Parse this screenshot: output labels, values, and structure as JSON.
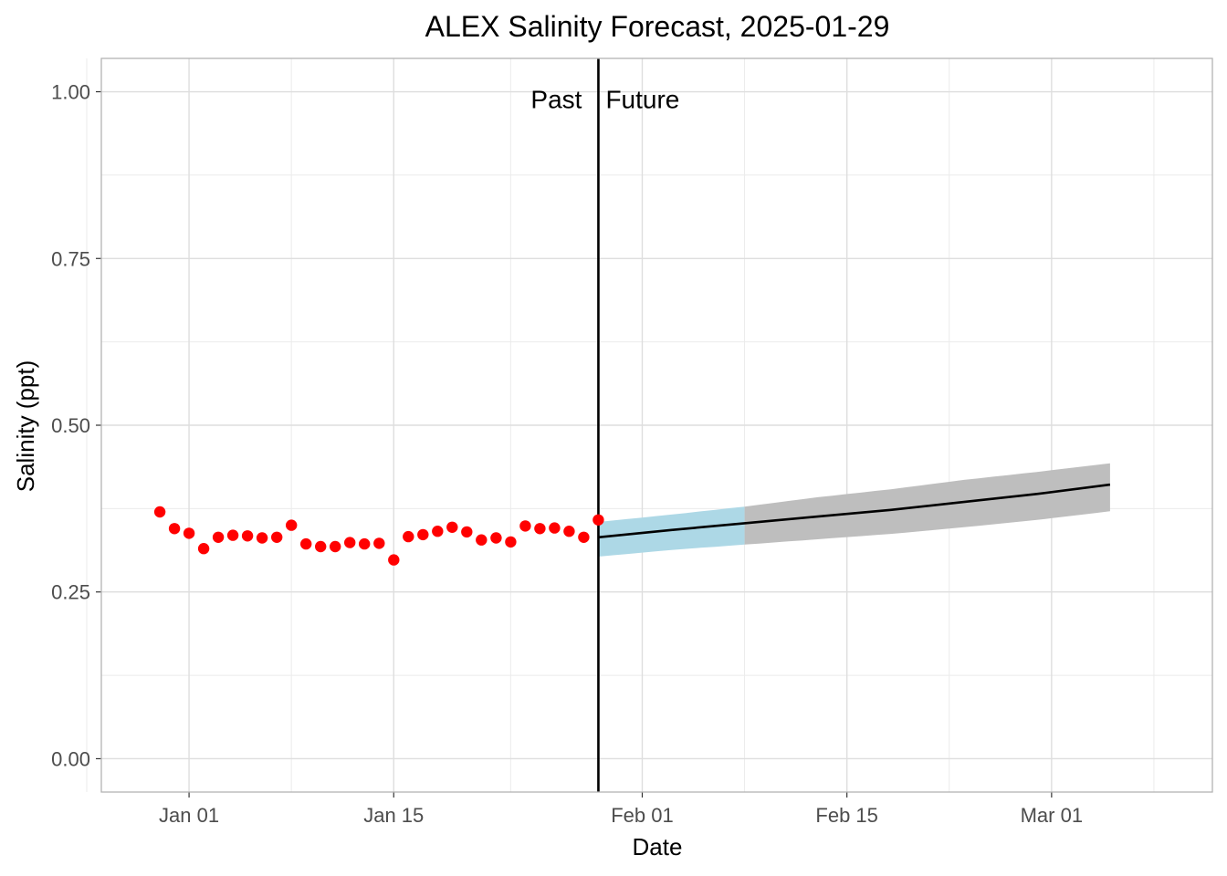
{
  "chart_data": {
    "type": "line",
    "title": "ALEX Salinity Forecast, 2025-01-29",
    "xlabel": "Date",
    "ylabel": "Salinity (ppt)",
    "xlim": [
      "2024-12-26",
      "2025-03-12"
    ],
    "ylim": [
      -0.05,
      1.05
    ],
    "x_ticks": [
      {
        "date": "2025-01-01",
        "label": "Jan 01"
      },
      {
        "date": "2025-01-15",
        "label": "Jan 15"
      },
      {
        "date": "2025-02-01",
        "label": "Feb 01"
      },
      {
        "date": "2025-02-15",
        "label": "Feb 15"
      },
      {
        "date": "2025-03-01",
        "label": "Mar 01"
      }
    ],
    "x_minor_ticks": [
      "2024-12-25",
      "2025-01-08",
      "2025-01-23",
      "2025-02-08",
      "2025-02-22",
      "2025-03-08"
    ],
    "y_ticks": [
      {
        "value": 0.0,
        "label": "0.00"
      },
      {
        "value": 0.25,
        "label": "0.25"
      },
      {
        "value": 0.5,
        "label": "0.50"
      },
      {
        "value": 0.75,
        "label": "0.75"
      },
      {
        "value": 1.0,
        "label": "1.00"
      }
    ],
    "y_minor_ticks": [
      0.125,
      0.375,
      0.625,
      0.875
    ],
    "grid": true,
    "forecast_date": "2025-01-29",
    "annotations": {
      "past": "Past",
      "future": "Future"
    },
    "observations": {
      "color": "#ff0000",
      "x": [
        "2024-12-30",
        "2024-12-31",
        "2025-01-01",
        "2025-01-02",
        "2025-01-03",
        "2025-01-04",
        "2025-01-05",
        "2025-01-06",
        "2025-01-07",
        "2025-01-08",
        "2025-01-09",
        "2025-01-10",
        "2025-01-11",
        "2025-01-12",
        "2025-01-13",
        "2025-01-14",
        "2025-01-15",
        "2025-01-16",
        "2025-01-17",
        "2025-01-18",
        "2025-01-19",
        "2025-01-20",
        "2025-01-21",
        "2025-01-22",
        "2025-01-23",
        "2025-01-24",
        "2025-01-25",
        "2025-01-26",
        "2025-01-27",
        "2025-01-28",
        "2025-01-29"
      ],
      "y": [
        0.37,
        0.345,
        0.338,
        0.315,
        0.332,
        0.335,
        0.334,
        0.331,
        0.332,
        0.35,
        0.322,
        0.318,
        0.318,
        0.324,
        0.322,
        0.323,
        0.298,
        0.333,
        0.336,
        0.341,
        0.347,
        0.34,
        0.328,
        0.331,
        0.325,
        0.349,
        0.345,
        0.346,
        0.341,
        0.332,
        0.358
      ]
    },
    "forecast": {
      "line_color": "#000000",
      "near_term_band_color": "#add8e6",
      "long_term_band_color": "#bebebe",
      "near_term_end": "2025-02-08",
      "x": [
        "2025-01-29",
        "2025-02-03",
        "2025-02-08",
        "2025-02-13",
        "2025-02-18",
        "2025-02-23",
        "2025-02-28",
        "2025-03-05"
      ],
      "mean": [
        0.332,
        0.343,
        0.353,
        0.363,
        0.373,
        0.385,
        0.397,
        0.411
      ],
      "lower": [
        0.303,
        0.313,
        0.321,
        0.329,
        0.337,
        0.347,
        0.358,
        0.371
      ],
      "upper": [
        0.355,
        0.366,
        0.378,
        0.392,
        0.404,
        0.418,
        0.43,
        0.443
      ]
    }
  }
}
